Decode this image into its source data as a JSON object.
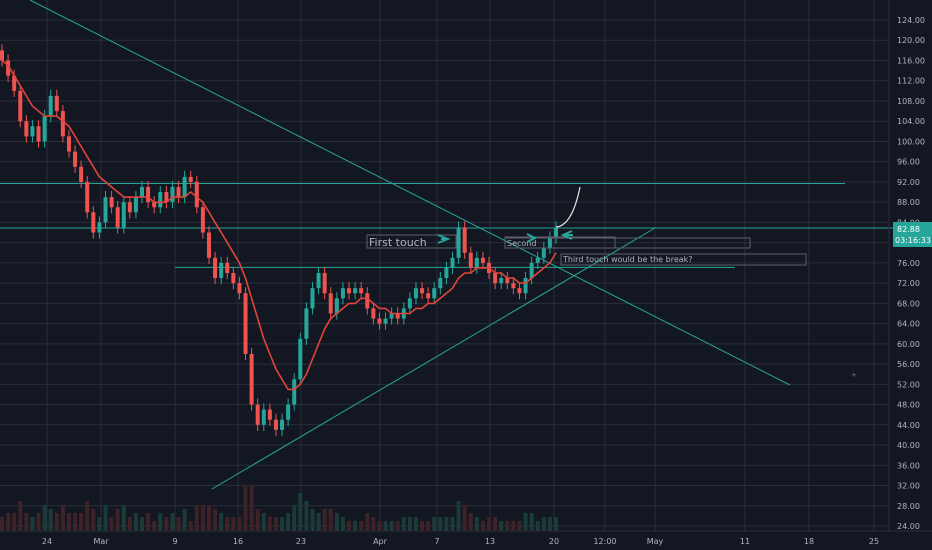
{
  "chart_data": {
    "type": "candlestick",
    "symbol_hint": "",
    "price_axis": {
      "ticks": [
        24.0,
        28.0,
        32.0,
        36.0,
        40.0,
        44.0,
        48.0,
        52.0,
        56.0,
        60.0,
        64.0,
        68.0,
        72.0,
        76.0,
        80.0,
        84.0,
        88.0,
        92.0,
        96.0,
        100.0,
        104.0,
        108.0,
        112.0,
        116.0,
        120.0,
        124.0
      ],
      "range": [
        22.5,
        125.5
      ]
    },
    "time_axis": {
      "labels": [
        "24",
        "Mar",
        "9",
        "16",
        "23",
        "Apr",
        "7",
        "13",
        "20",
        "12:00",
        "May",
        "11",
        "18",
        "25"
      ]
    },
    "last_price": {
      "value_label": "82.88",
      "countdown_label": "03:16:33"
    },
    "series": [
      {
        "name": "",
        "kind": "ohlc",
        "values": [
          [
            118,
            116
          ],
          [
            116,
            113
          ],
          [
            113,
            110
          ],
          [
            110,
            104
          ],
          [
            104,
            101
          ],
          [
            101,
            103
          ],
          [
            103,
            100
          ],
          [
            100,
            105
          ],
          [
            105,
            109
          ],
          [
            109,
            106
          ],
          [
            106,
            101
          ],
          [
            101,
            98
          ],
          [
            98,
            95
          ],
          [
            95,
            92
          ],
          [
            92,
            86
          ],
          [
            86,
            82
          ],
          [
            82,
            84
          ],
          [
            84,
            89
          ],
          [
            89,
            87
          ],
          [
            87,
            83
          ],
          [
            83,
            88
          ],
          [
            88,
            86
          ],
          [
            86,
            89
          ],
          [
            89,
            91
          ],
          [
            91,
            88
          ],
          [
            88,
            87
          ],
          [
            87,
            90
          ],
          [
            90,
            88
          ],
          [
            88,
            91
          ],
          [
            91,
            89
          ],
          [
            89,
            93
          ],
          [
            93,
            92
          ],
          [
            92,
            87
          ],
          [
            87,
            82
          ],
          [
            82,
            77
          ],
          [
            77,
            73
          ],
          [
            73,
            76
          ],
          [
            76,
            74
          ],
          [
            74,
            72
          ],
          [
            72,
            70
          ],
          [
            70,
            58
          ],
          [
            58,
            48
          ],
          [
            48,
            44
          ],
          [
            44,
            47
          ],
          [
            47,
            45
          ],
          [
            45,
            43
          ],
          [
            43,
            45
          ],
          [
            45,
            48
          ],
          [
            48,
            53
          ],
          [
            53,
            61
          ],
          [
            61,
            67
          ],
          [
            67,
            71
          ],
          [
            71,
            74
          ],
          [
            74,
            70
          ],
          [
            70,
            66
          ],
          [
            66,
            69
          ],
          [
            69,
            71
          ],
          [
            71,
            70
          ],
          [
            70,
            71
          ],
          [
            71,
            70
          ],
          [
            70,
            67
          ],
          [
            67,
            65
          ],
          [
            65,
            64
          ],
          [
            64,
            65
          ],
          [
            65,
            66
          ],
          [
            66,
            65
          ],
          [
            65,
            67
          ],
          [
            67,
            69
          ],
          [
            69,
            71
          ],
          [
            71,
            70
          ],
          [
            70,
            69
          ],
          [
            69,
            71
          ],
          [
            71,
            73
          ],
          [
            73,
            75
          ],
          [
            75,
            77
          ],
          [
            77,
            83
          ],
          [
            83,
            78
          ],
          [
            78,
            75
          ],
          [
            75,
            77
          ],
          [
            77,
            76
          ],
          [
            76,
            74
          ],
          [
            74,
            72
          ],
          [
            72,
            73
          ],
          [
            73,
            72
          ],
          [
            72,
            71
          ],
          [
            71,
            70
          ],
          [
            70,
            73
          ],
          [
            73,
            76
          ],
          [
            76,
            77
          ],
          [
            77,
            79
          ],
          [
            79,
            81
          ],
          [
            81,
            83
          ]
        ]
      },
      {
        "name": "",
        "kind": "moving_average",
        "values": [
          116,
          115,
          113,
          111,
          109,
          107,
          106,
          105,
          105,
          105,
          104,
          103,
          101,
          99,
          97,
          95,
          93,
          92,
          91,
          90,
          89,
          89,
          89,
          89,
          89,
          88,
          88,
          88,
          89,
          89,
          89,
          90,
          89,
          88,
          86,
          84,
          82,
          80,
          78,
          76,
          73,
          69,
          65,
          61,
          58,
          55,
          53,
          51,
          51,
          52,
          54,
          57,
          60,
          63,
          65,
          66,
          67,
          68,
          68,
          69,
          69,
          68,
          67,
          67,
          66,
          66,
          66,
          66,
          67,
          67,
          68,
          68,
          69,
          70,
          71,
          73,
          74,
          74,
          75,
          75,
          75,
          74,
          74,
          73,
          73,
          72,
          72,
          73,
          74,
          75,
          76,
          78
        ]
      }
    ],
    "horizontal_levels": [
      {
        "value": 91.7,
        "style": "solid"
      },
      {
        "value": 82.9,
        "style": "solid"
      },
      {
        "value": 75.1,
        "style": "solid"
      }
    ],
    "annotations": {
      "first_touch": "First touch",
      "second_touch": "Second",
      "third_touch": "Third touch would be the break?"
    },
    "colors": {
      "background": "#131722",
      "grid": "#2a2e39",
      "bull": "#26a69a",
      "bear": "#ef5350",
      "ma": "#e0443a",
      "trendline": "#26a69a",
      "text": "#b2b5be",
      "last_price_tag": "#26a69a"
    },
    "grid": true
  }
}
